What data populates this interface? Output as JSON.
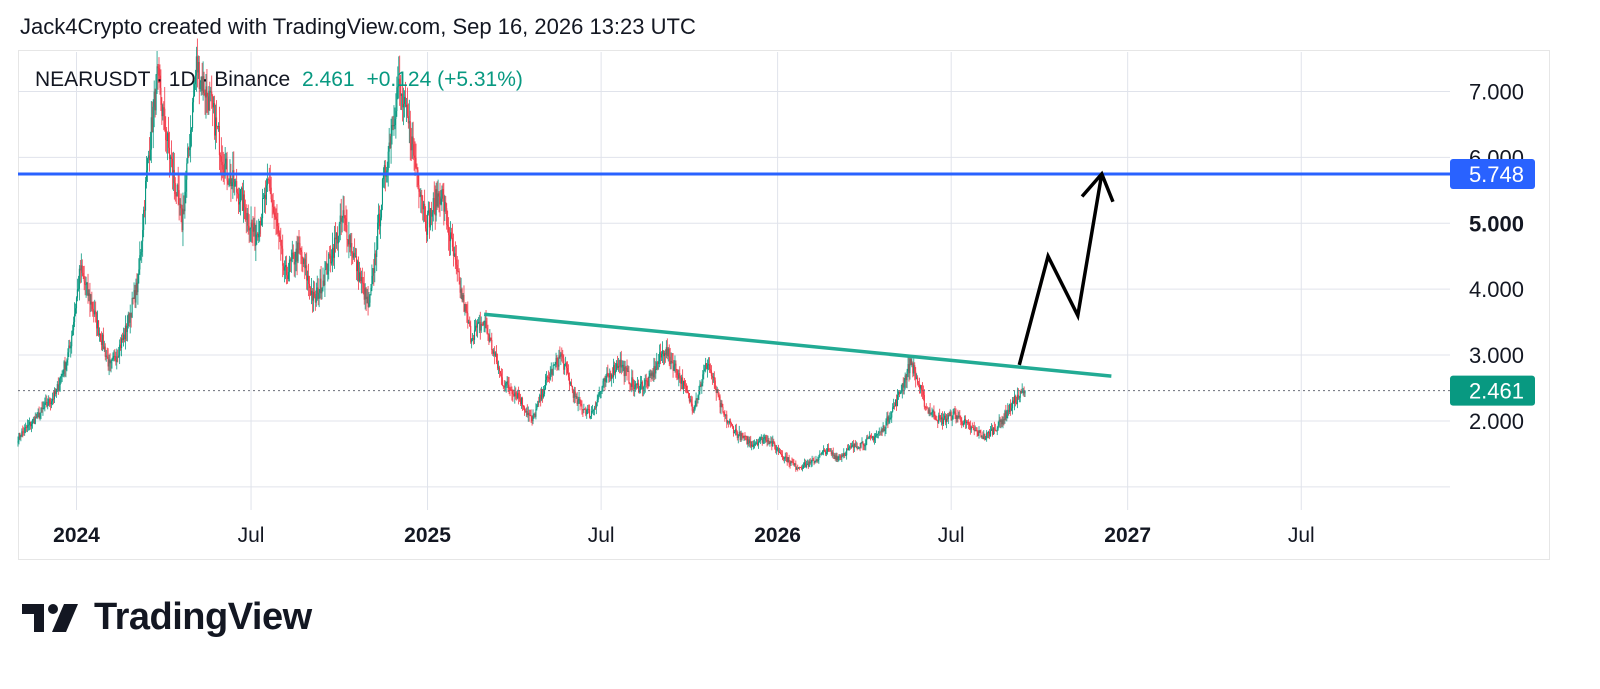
{
  "header": {
    "caption": "Jack4Crypto created with TradingView.com, Sep 16, 2026 13:23 UTC"
  },
  "legend": {
    "symbol": "NEARUSDT · 1D · Binance",
    "price": "2.461",
    "change": "+0.124 (+5.31%)"
  },
  "brand": {
    "name": "TradingView"
  },
  "colors": {
    "up": "#089981",
    "down": "#F23645",
    "trendline": "#22AB94",
    "resistance": "#2962FF",
    "projection": "#000000",
    "grid": "#E0E3EB"
  },
  "chart_data": {
    "type": "candlestick",
    "symbol": "NEARUSDT",
    "interval": "1D",
    "exchange": "Binance",
    "x_ticks": [
      {
        "date": "2024-01-01",
        "label": "2024",
        "bold": true
      },
      {
        "date": "2024-07-01",
        "label": "Jul",
        "bold": false
      },
      {
        "date": "2025-01-01",
        "label": "2025",
        "bold": true
      },
      {
        "date": "2025-07-01",
        "label": "Jul",
        "bold": false
      },
      {
        "date": "2026-01-01",
        "label": "2026",
        "bold": true
      },
      {
        "date": "2026-07-01",
        "label": "Jul",
        "bold": false
      },
      {
        "date": "2027-01-01",
        "label": "2027",
        "bold": true
      },
      {
        "date": "2027-07-01",
        "label": "Jul",
        "bold": false
      }
    ],
    "y_ticks": [
      {
        "value": 2,
        "label": "2.000"
      },
      {
        "value": 3,
        "label": "3.000"
      },
      {
        "value": 4,
        "label": "4.000"
      },
      {
        "value": 5,
        "label": "5.000"
      },
      {
        "value": 6,
        "label": "6.000"
      },
      {
        "value": 7,
        "label": "7.000"
      }
    ],
    "x_range": [
      "2023-11-01",
      "2027-12-01"
    ],
    "y_range": [
      0.8,
      7.6
    ],
    "grid": true,
    "last_price": {
      "value": 2.461,
      "label": "2.461"
    },
    "resistance": {
      "value": 5.748,
      "label": "5.748"
    },
    "trendline": {
      "start": {
        "date": "2025-03-01",
        "value": 3.62
      },
      "end": {
        "date": "2026-12-15",
        "value": 2.68
      }
    },
    "projection": [
      {
        "date": "2026-09-10",
        "value": 2.85
      },
      {
        "date": "2026-10-10",
        "value": 4.5
      },
      {
        "date": "2026-11-10",
        "value": 3.6
      },
      {
        "date": "2026-12-05",
        "value": 5.75
      }
    ],
    "price_path": [
      [
        "2023-11-01",
        1.75
      ],
      [
        "2023-11-20",
        2.05
      ],
      [
        "2023-12-10",
        2.4
      ],
      [
        "2023-12-25",
        3.1
      ],
      [
        "2024-01-05",
        4.3
      ],
      [
        "2024-01-20",
        3.6
      ],
      [
        "2024-02-05",
        2.8
      ],
      [
        "2024-02-20",
        3.3
      ],
      [
        "2024-03-05",
        4.1
      ],
      [
        "2024-03-15",
        5.9
      ],
      [
        "2024-03-25",
        7.2
      ],
      [
        "2024-04-05",
        6.2
      ],
      [
        "2024-04-20",
        5.0
      ],
      [
        "2024-05-05",
        7.4
      ],
      [
        "2024-05-20",
        6.8
      ],
      [
        "2024-06-05",
        5.8
      ],
      [
        "2024-06-20",
        5.4
      ],
      [
        "2024-07-05",
        4.8
      ],
      [
        "2024-07-20",
        5.6
      ],
      [
        "2024-08-05",
        4.2
      ],
      [
        "2024-08-20",
        4.6
      ],
      [
        "2024-09-05",
        3.8
      ],
      [
        "2024-09-20",
        4.4
      ],
      [
        "2024-10-05",
        5.1
      ],
      [
        "2024-10-20",
        4.3
      ],
      [
        "2024-11-01",
        3.7
      ],
      [
        "2024-11-15",
        5.5
      ],
      [
        "2024-12-01",
        7.1
      ],
      [
        "2024-12-15",
        6.3
      ],
      [
        "2024-12-31",
        5.0
      ],
      [
        "2025-01-15",
        5.5
      ],
      [
        "2025-02-01",
        4.2
      ],
      [
        "2025-02-15",
        3.3
      ],
      [
        "2025-03-01",
        3.5
      ],
      [
        "2025-03-20",
        2.6
      ],
      [
        "2025-04-05",
        2.4
      ],
      [
        "2025-04-20",
        2.0
      ],
      [
        "2025-05-05",
        2.6
      ],
      [
        "2025-05-20",
        3.0
      ],
      [
        "2025-06-05",
        2.3
      ],
      [
        "2025-06-20",
        2.1
      ],
      [
        "2025-07-05",
        2.6
      ],
      [
        "2025-07-20",
        2.9
      ],
      [
        "2025-08-05",
        2.5
      ],
      [
        "2025-08-20",
        2.6
      ],
      [
        "2025-09-05",
        3.1
      ],
      [
        "2025-09-20",
        2.7
      ],
      [
        "2025-10-05",
        2.2
      ],
      [
        "2025-10-20",
        2.9
      ],
      [
        "2025-11-05",
        2.1
      ],
      [
        "2025-11-20",
        1.8
      ],
      [
        "2025-12-05",
        1.65
      ],
      [
        "2025-12-20",
        1.75
      ],
      [
        "2026-01-05",
        1.5
      ],
      [
        "2026-01-20",
        1.3
      ],
      [
        "2026-02-05",
        1.35
      ],
      [
        "2026-02-20",
        1.55
      ],
      [
        "2026-03-05",
        1.45
      ],
      [
        "2026-03-20",
        1.6
      ],
      [
        "2026-04-05",
        1.7
      ],
      [
        "2026-04-20",
        1.85
      ],
      [
        "2026-05-05",
        2.3
      ],
      [
        "2026-05-20",
        2.9
      ],
      [
        "2026-06-05",
        2.2
      ],
      [
        "2026-06-20",
        2.0
      ],
      [
        "2026-07-05",
        2.1
      ],
      [
        "2026-07-20",
        1.9
      ],
      [
        "2026-08-05",
        1.75
      ],
      [
        "2026-08-20",
        1.95
      ],
      [
        "2026-09-05",
        2.3
      ],
      [
        "2026-09-16",
        2.461
      ]
    ]
  }
}
